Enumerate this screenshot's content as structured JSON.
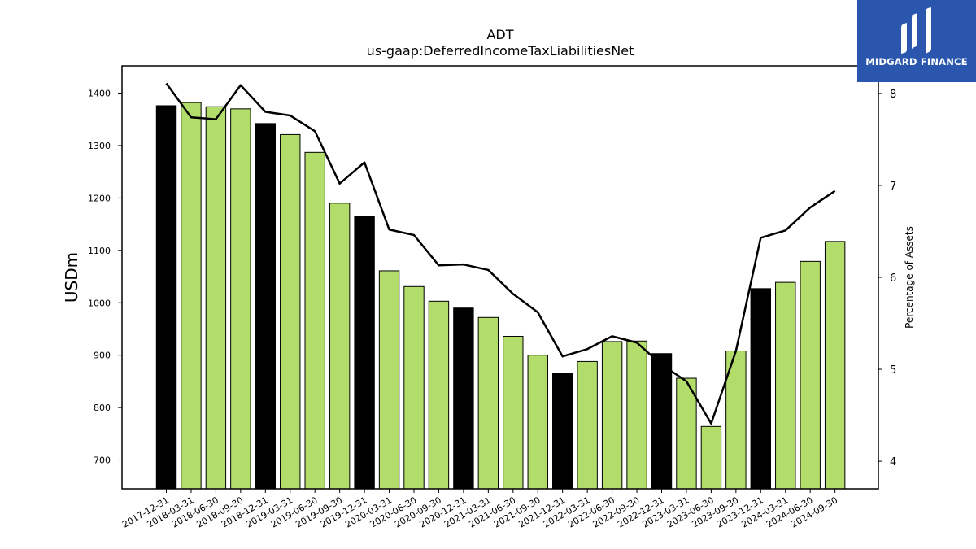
{
  "logo": {
    "text": "MIDGARD FINANCE",
    "icon": "midgard-logo-icon",
    "color": "#2a57ad"
  },
  "chart_data": {
    "type": "bar",
    "title": "ADT",
    "subtitle": "us-gaap:DeferredIncomeTaxLiabilitiesNet",
    "ylabel": "USDm",
    "y2label": "Percentage of Assets",
    "ylim": [
      645,
      1452
    ],
    "y2lim": [
      3.7,
      8.3
    ],
    "yticks": [
      700,
      800,
      900,
      1000,
      1100,
      1200,
      1300,
      1400
    ],
    "y2ticks": [
      4,
      5,
      6,
      7,
      8
    ],
    "grid": false,
    "colors": {
      "year_end_bar": "#000000",
      "quarter_bar": "#b3dd6a",
      "line": "#000000"
    },
    "categories": [
      "2017-12-31",
      "2018-03-31",
      "2018-06-30",
      "2018-09-30",
      "2018-12-31",
      "2019-03-31",
      "2019-06-30",
      "2019-09-30",
      "2019-12-31",
      "2020-03-31",
      "2020-06-30",
      "2020-09-30",
      "2020-12-31",
      "2021-03-31",
      "2021-06-30",
      "2021-09-30",
      "2021-12-31",
      "2022-03-31",
      "2022-06-30",
      "2022-09-30",
      "2022-12-31",
      "2023-03-31",
      "2023-06-30",
      "2023-09-30",
      "2023-12-31",
      "2024-03-31",
      "2024-06-30",
      "2024-09-30"
    ],
    "values": [
      1376,
      1382,
      1374,
      1370,
      1342,
      1321,
      1287,
      1190,
      1165,
      1061,
      1031,
      1003,
      990,
      972,
      936,
      900,
      866,
      888,
      926,
      927,
      903,
      856,
      764,
      908,
      1027,
      1039,
      1079,
      1117
    ],
    "year_end": [
      true,
      false,
      false,
      false,
      true,
      false,
      false,
      false,
      true,
      false,
      false,
      false,
      true,
      false,
      false,
      false,
      true,
      false,
      false,
      false,
      true,
      false,
      false,
      false,
      true,
      false,
      false,
      false
    ],
    "line_values": [
      8.11,
      7.74,
      7.72,
      8.09,
      7.8,
      7.76,
      7.59,
      7.02,
      7.25,
      6.52,
      6.46,
      6.13,
      6.14,
      6.08,
      5.82,
      5.62,
      5.14,
      5.22,
      5.36,
      5.29,
      5.05,
      4.87,
      4.41,
      5.2,
      6.43,
      6.51,
      6.76,
      6.94
    ]
  }
}
